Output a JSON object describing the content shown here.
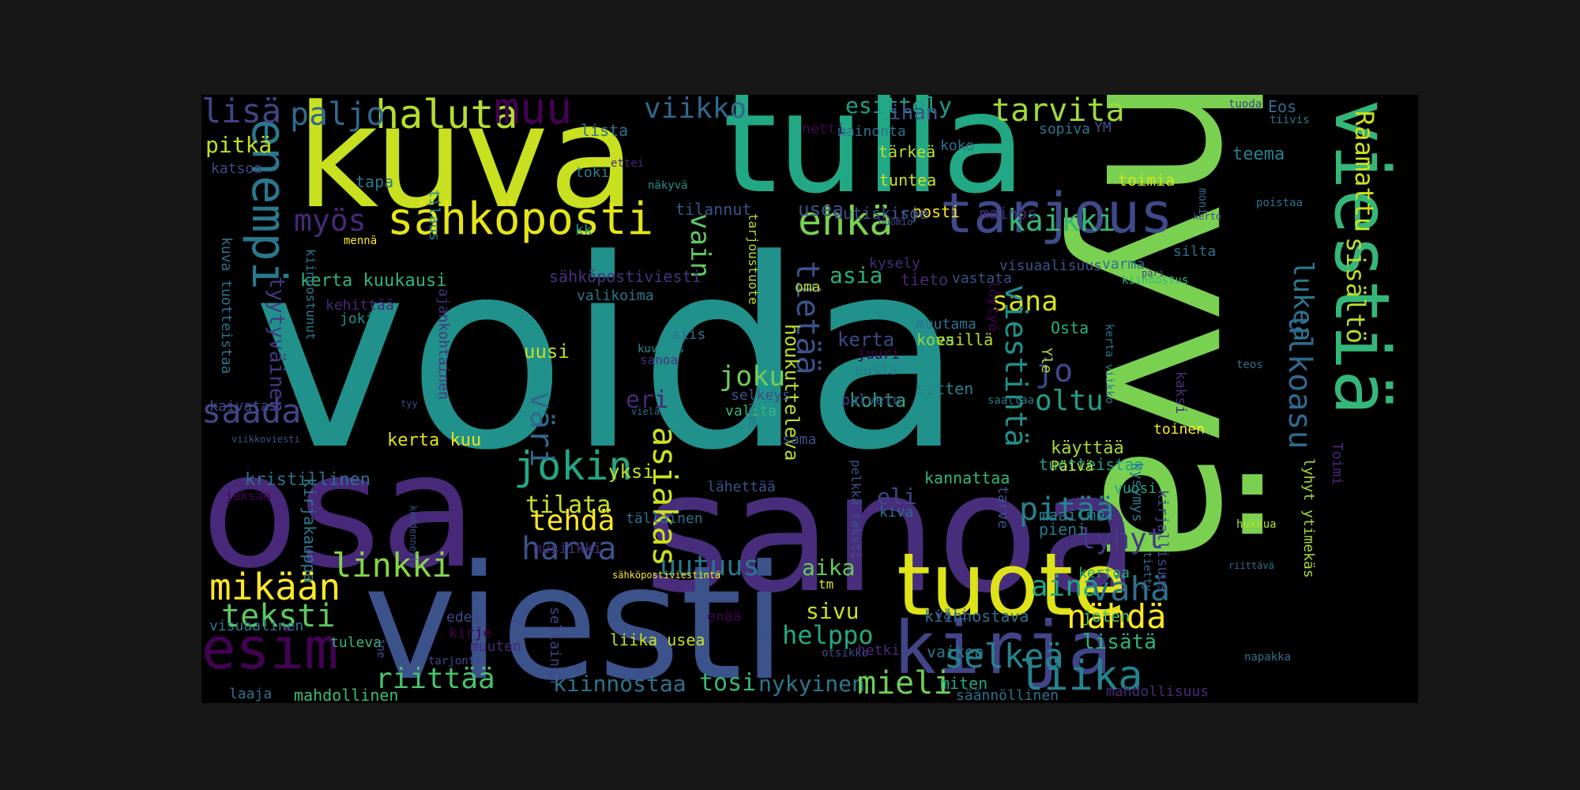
{
  "words": [
    {
      "id": "voida",
      "text": "voida",
      "color": "#21918c"
    },
    {
      "id": "hyva",
      "text": "hyvä",
      "color": "#7ad151"
    },
    {
      "id": "sanoa",
      "text": "sanoa",
      "color": "#472d7b"
    },
    {
      "id": "osa",
      "text": "osa",
      "color": "#482878"
    },
    {
      "id": "viesti",
      "text": "viesti",
      "color": "#3b528b"
    },
    {
      "id": "kuva",
      "text": "kuva",
      "color": "#c8e020"
    },
    {
      "id": "tulla",
      "text": "tulla",
      "color": "#22a884"
    },
    {
      "id": "tuote",
      "text": "tuote",
      "color": "#dde318"
    },
    {
      "id": "viestia",
      "text": "viestiä",
      "color": "#35b779"
    },
    {
      "id": "kirja",
      "text": "kirja",
      "color": "#414487"
    },
    {
      "id": "tarjous",
      "text": "tarjous",
      "color": "#3e4a89"
    },
    {
      "id": "sahkoposti",
      "text": "sähköposti",
      "color": "#e5e419"
    },
    {
      "id": "enempi",
      "text": "enempi",
      "color": "#2a788e"
    },
    {
      "id": "esim",
      "text": "esim",
      "color": "#440154"
    },
    {
      "id": "haluta",
      "text": "haluta",
      "color": "#b5de2b"
    },
    {
      "id": "muu",
      "text": "muu",
      "color": "#440154"
    },
    {
      "id": "viikko",
      "text": "viikko",
      "color": "#31688e"
    },
    {
      "id": "tarvita",
      "text": "tarvita",
      "color": "#a0da39"
    },
    {
      "id": "esittely",
      "text": "esittely",
      "color": "#1f9e89"
    },
    {
      "id": "lisa",
      "text": "lisä",
      "color": "#414487"
    },
    {
      "id": "paljo",
      "text": "paljo",
      "color": "#31688e"
    },
    {
      "id": "pitka",
      "text": "pitkä",
      "color": "#c2df23"
    },
    {
      "id": "ehka",
      "text": "ehkä",
      "color": "#7ad151"
    },
    {
      "id": "kaikki",
      "text": "kaikki",
      "color": "#35b779"
    },
    {
      "id": "myos",
      "text": "myös",
      "color": "#482878"
    },
    {
      "id": "saada",
      "text": "saada",
      "color": "#414487"
    },
    {
      "id": "joku",
      "text": "joku",
      "color": "#6ece58"
    },
    {
      "id": "jokin",
      "text": "jokin",
      "color": "#22a884"
    },
    {
      "id": "tehda",
      "text": "tehdä",
      "color": "#fde725"
    },
    {
      "id": "harva",
      "text": "harva",
      "color": "#3b528b"
    },
    {
      "id": "uutuus",
      "text": "uutuus",
      "color": "#2a788e"
    },
    {
      "id": "mikaan",
      "text": "mikään",
      "color": "#fde725"
    },
    {
      "id": "linkki",
      "text": "linkki",
      "color": "#86d549"
    },
    {
      "id": "teksti",
      "text": "teksti",
      "color": "#5ec962"
    },
    {
      "id": "sana",
      "text": "sana",
      "color": "#d8e219"
    },
    {
      "id": "oltu",
      "text": "oltu",
      "color": "#1f9e89"
    },
    {
      "id": "jo",
      "text": "jo",
      "color": "#3e4989"
    },
    {
      "id": "pitaa",
      "text": "pitää",
      "color": "#26828e"
    },
    {
      "id": "lyhyt",
      "text": "lyhyt",
      "color": "#443983"
    },
    {
      "id": "aina",
      "text": "aina",
      "color": "#21a685"
    },
    {
      "id": "vaha",
      "text": "vähä",
      "color": "#2c728e"
    },
    {
      "id": "nahda",
      "text": "nähdä",
      "color": "#fde725"
    },
    {
      "id": "selkea",
      "text": "selkeä",
      "color": "#26828e"
    },
    {
      "id": "liika",
      "text": "liika",
      "color": "#25838e"
    },
    {
      "id": "lisata",
      "text": "lisätä",
      "color": "#2db27d"
    },
    {
      "id": "riittaa",
      "text": "riittää",
      "color": "#4ac16d"
    },
    {
      "id": "kiinnostaa",
      "text": "kiinnostaa",
      "color": "#2c728e"
    },
    {
      "id": "tosi",
      "text": "tosi",
      "color": "#35b779"
    },
    {
      "id": "nykyinen",
      "text": "nykyinen",
      "color": "#2a788e"
    },
    {
      "id": "mieli",
      "text": "mieli",
      "color": "#6ece58"
    },
    {
      "id": "helppo",
      "text": "helppo",
      "color": "#22a884"
    },
    {
      "id": "sivu",
      "text": "sivu",
      "color": "#c8e020"
    },
    {
      "id": "aika",
      "text": "aika",
      "color": "#65cb5e"
    },
    {
      "id": "tilata",
      "text": "tilata",
      "color": "#c8e020"
    },
    {
      "id": "yksi",
      "text": "yksi",
      "color": "#bddf26"
    },
    {
      "id": "eri",
      "text": "eri",
      "color": "#482878"
    },
    {
      "id": "asia",
      "text": "asia",
      "color": "#27ad81"
    },
    {
      "id": "kohta",
      "text": "kohta",
      "color": "#25ab82"
    },
    {
      "id": "eli",
      "text": "eli",
      "color": "#414487"
    },
    {
      "id": "kerta",
      "text": "kerta",
      "color": "#3e4a89"
    },
    {
      "id": "uusi",
      "text": "uusi",
      "color": "#c2df23"
    },
    {
      "id": "kerta-kuukausi",
      "text": "kerta kuukausi",
      "color": "#31b57b"
    },
    {
      "id": "kerta-kuu",
      "text": "kerta kuu",
      "color": "#e5e419"
    },
    {
      "id": "kristillinen",
      "text": "kristillinen",
      "color": "#2c728e"
    },
    {
      "id": "usea",
      "text": "usea",
      "color": "#3b528b"
    },
    {
      "id": "tapa",
      "text": "tapa",
      "color": "#2a788e"
    },
    {
      "id": "tilaus",
      "text": "tilaus",
      "color": "#228c8d"
    },
    {
      "id": "lista",
      "text": "lista",
      "color": "#2c728e"
    },
    {
      "id": "toki",
      "text": "toki",
      "color": "#287c8e"
    },
    {
      "id": "kk",
      "text": "kk",
      "color": "#1fa088"
    },
    {
      "id": "ihan",
      "text": "ihan",
      "color": "#3b528b"
    },
    {
      "id": "mainonta",
      "text": "mainonta",
      "color": "#2c728e"
    },
    {
      "id": "tarkea",
      "text": "tärkeä",
      "color": "#bddf26"
    },
    {
      "id": "tuntea",
      "text": "tuntea",
      "color": "#cae11f"
    },
    {
      "id": "koko",
      "text": "koko",
      "color": "#2c728e"
    },
    {
      "id": "netti",
      "text": "netti",
      "color": "#440154"
    },
    {
      "id": "sopiva",
      "text": "sopiva",
      "color": "#2a788e"
    },
    {
      "id": "ym",
      "text": "YM",
      "color": "#3b528b"
    },
    {
      "id": "tuoda",
      "text": "tuoda",
      "color": "#3e4989"
    },
    {
      "id": "eos",
      "text": "Eos",
      "color": "#2e6f8e"
    },
    {
      "id": "tiiviis",
      "text": "tiivis",
      "color": "#2a788e"
    },
    {
      "id": "teema",
      "text": "teema",
      "color": "#26828e"
    },
    {
      "id": "toimia",
      "text": "toimia",
      "color": "#d2e21b"
    },
    {
      "id": "raamattu",
      "text": "Raamattu",
      "color": "#cde11d"
    },
    {
      "id": "sisalto",
      "text": "sisältö",
      "color": "#b8de29"
    },
    {
      "id": "lukea",
      "text": "lukea",
      "color": "#2a788e"
    },
    {
      "id": "ulkoasu",
      "text": "ulkoasu",
      "color": "#31688e"
    },
    {
      "id": "viestinta",
      "text": "viestintä",
      "color": "#21918c"
    },
    {
      "id": "tietaa",
      "text": "tietää",
      "color": "#3b528b"
    },
    {
      "id": "vain",
      "text": "vain",
      "color": "#5ec962"
    },
    {
      "id": "houkutteleva",
      "text": "houkutteleva",
      "color": "#bddf26"
    },
    {
      "id": "asiakas",
      "text": "asiakas",
      "color": "#cde11d"
    },
    {
      "id": "vari",
      "text": "väri",
      "color": "#31688e"
    },
    {
      "id": "tuotteistaa",
      "text": "tuotteistaa",
      "color": "#1fa088"
    },
    {
      "id": "kayttaa",
      "text": "käyttää",
      "color": "#a8db34"
    },
    {
      "id": "toinen",
      "text": "toinen",
      "color": "#fde725"
    },
    {
      "id": "paiva",
      "text": "Päivä",
      "color": "#bddf26"
    },
    {
      "id": "kiinnostava",
      "text": "kiinnostava",
      "color": "#2c728e"
    },
    {
      "id": "joten",
      "text": "joten",
      "color": "#4ac16d"
    },
    {
      "id": "osta",
      "text": "Osta",
      "color": "#2ab07f"
    },
    {
      "id": "yle",
      "text": "Yle",
      "color": "#bddf26"
    },
    {
      "id": "esilla",
      "text": "esillä",
      "color": "#bddf26"
    },
    {
      "id": "kova",
      "text": "kova",
      "color": "#8bd646"
    },
    {
      "id": "muutama",
      "text": "muutama",
      "color": "#2c728e"
    },
    {
      "id": "sitten",
      "text": "sitten",
      "color": "#25838e"
    },
    {
      "id": "kannattaa",
      "text": "kannattaa",
      "color": "#35b779"
    },
    {
      "id": "vuosi",
      "text": "vuosi",
      "color": "#22a884"
    },
    {
      "id": "maailma",
      "text": "maailma",
      "color": "#2a788e"
    },
    {
      "id": "pieni",
      "text": "pieni",
      "color": "#2a788e"
    },
    {
      "id": "kertoa",
      "text": "kertoa",
      "color": "#25ab82"
    },
    {
      "id": "silta",
      "text": "silta",
      "color": "#2c728e"
    },
    {
      "id": "varma",
      "text": "varma",
      "color": "#2c728e"
    },
    {
      "id": "kiinnostus",
      "text": "kiinnostus",
      "color": "#35b779"
    },
    {
      "id": "vastata",
      "text": "vastata",
      "color": "#3b528b"
    },
    {
      "id": "tieto",
      "text": "tieto",
      "color": "#482878"
    },
    {
      "id": "kysely",
      "text": "kysely",
      "color": "#482878"
    },
    {
      "id": "visuaalisuus",
      "text": "visuaalisuus",
      "color": "#3b528b"
    },
    {
      "id": "mainos",
      "text": "mainos",
      "color": "#482878"
    },
    {
      "id": "posti",
      "text": "posti",
      "color": "#fde725"
    },
    {
      "id": "iso",
      "text": "iso",
      "color": "#3b528b"
    },
    {
      "id": "uutiskirje",
      "text": "uutiskirje",
      "color": "#3b528b"
    },
    {
      "id": "tilannut",
      "text": "tilannut",
      "color": "#3b528b"
    },
    {
      "id": "tyytyvainen",
      "text": "tyytyväinen",
      "color": "#443983"
    },
    {
      "id": "kiinnostunut",
      "text": "kiinnostunut",
      "color": "#2a788e"
    },
    {
      "id": "kehittaa",
      "text": "kehittää",
      "color": "#482878"
    },
    {
      "id": "joki",
      "text": "joki",
      "color": "#21918c"
    },
    {
      "id": "ajankohtainen",
      "text": "ajankohtainen",
      "color": "#46327e"
    },
    {
      "id": "kuva-tuotteistaa",
      "text": "kuva tuotteistaa",
      "color": "#2c728e"
    },
    {
      "id": "kaivata",
      "text": "kaivata",
      "color": "#3e4a89"
    },
    {
      "id": "katsoa",
      "text": "katsoa",
      "color": "#3e4989"
    },
    {
      "id": "sahkopostiviesti",
      "text": "sähköpostiviesti",
      "color": "#46327e"
    },
    {
      "id": "valikoima",
      "text": "valikoima",
      "color": "#2a788e"
    },
    {
      "id": "oma",
      "text": "oma",
      "color": "#c2df23"
    },
    {
      "id": "siis",
      "text": "siis",
      "color": "#2c728e"
    },
    {
      "id": "sanoa-small",
      "text": "sanoa",
      "color": "#46327e"
    },
    {
      "id": "valita",
      "text": "valita",
      "color": "#35b779"
    },
    {
      "id": "selkeys",
      "text": "selkeys",
      "color": "#3b528b"
    },
    {
      "id": "sama",
      "text": "sama",
      "color": "#3b528b"
    },
    {
      "id": "palvelu",
      "text": "palvelu",
      "color": "#3e4a89"
    },
    {
      "id": "juuri",
      "text": "juuri",
      "color": "#440154"
    },
    {
      "id": "uusia",
      "text": "uusia",
      "color": "#2a788e"
    },
    {
      "id": "lahettaa",
      "text": "lähettää",
      "color": "#3b528b"
    },
    {
      "id": "kiva",
      "text": "kiva",
      "color": "#2c728e"
    },
    {
      "id": "tallainen",
      "text": "tällainen",
      "color": "#2c728e"
    },
    {
      "id": "pelkka-teksti",
      "text": "pelkkä teksti",
      "color": "#3b528b"
    },
    {
      "id": "musiikki",
      "text": "musiikki",
      "color": "#482878"
    },
    {
      "id": "sahkopostiviestinta",
      "text": "sähköpostiviestintä",
      "color": "#fde725"
    },
    {
      "id": "tm",
      "text": "tm",
      "color": "#dde318"
    },
    {
      "id": "enaa",
      "text": "enää",
      "color": "#440154"
    },
    {
      "id": "vali",
      "text": "väli",
      "color": "#3b528b"
    },
    {
      "id": "vaikea",
      "text": "vaikea",
      "color": "#2a788e"
    },
    {
      "id": "ihminen",
      "text": "ihminen",
      "color": "#3b528b"
    },
    {
      "id": "otsikko",
      "text": "otsikko",
      "color": "#3e4989"
    },
    {
      "id": "hetki",
      "text": "hetki",
      "color": "#482878"
    },
    {
      "id": "miten",
      "text": "miten",
      "color": "#21a685"
    },
    {
      "id": "saannollinen",
      "text": "säännöllinen",
      "color": "#2c728e"
    },
    {
      "id": "mahdollisuus",
      "text": "mahdollisuus",
      "color": "#482878"
    },
    {
      "id": "mahdollinen",
      "text": "mahdollinen",
      "color": "#3fbc73"
    },
    {
      "id": "laaja",
      "text": "laaja",
      "color": "#2c728e"
    },
    {
      "id": "visuaalinen",
      "text": "visuaalinen",
      "color": "#2a788e"
    },
    {
      "id": "tuleva",
      "text": "tuleva",
      "color": "#35b779"
    },
    {
      "id": "edes",
      "text": "edes",
      "color": "#3e4989"
    },
    {
      "id": "kirje",
      "text": "kirje",
      "color": "#440154"
    },
    {
      "id": "muuten",
      "text": "muuten",
      "color": "#482878"
    },
    {
      "id": "tarjonta",
      "text": "tarjonta",
      "color": "#3e4989"
    },
    {
      "id": "liika-usea",
      "text": "liika usea",
      "color": "#c8e020"
    },
    {
      "id": "sellainen",
      "text": "sellainen",
      "color": "#414487"
    },
    {
      "id": "kirjakauppa",
      "text": "kirjakauppa",
      "color": "#2a788e"
    },
    {
      "id": "jaksaa",
      "text": "jaksaa",
      "color": "#440154"
    },
    {
      "id": "kohdennettu",
      "text": "kohdennettu",
      "color": "#3b528b"
    },
    {
      "id": "kirjallisuus",
      "text": "kirjallisuus",
      "color": "#414487"
    },
    {
      "id": "tarve",
      "text": "tarve",
      "color": "#3b528b"
    },
    {
      "id": "lyhyt-ytimekas",
      "text": "lyhyt ytimekäs",
      "color": "#a8db34"
    },
    {
      "id": "kysymys",
      "text": "kysymys",
      "color": "#2a788e"
    },
    {
      "id": "toimi",
      "text": "Toimi",
      "color": "#482878"
    },
    {
      "id": "hukkua",
      "text": "hukkua",
      "color": "#b5de2b"
    },
    {
      "id": "kaksi",
      "text": "kaksi",
      "color": "#472d7b"
    },
    {
      "id": "teos",
      "text": "teos",
      "color": "#2c728e"
    },
    {
      "id": "kerta-viikko",
      "text": "kerta viikko",
      "color": "#2a788e"
    },
    {
      "id": "loytya",
      "text": "löytyä",
      "color": "#440154"
    },
    {
      "id": "tarjoustuote",
      "text": "tarjoustuote",
      "color": "#b5de2b"
    },
    {
      "id": "nimi",
      "text": "nimi",
      "color": "#2c728e"
    },
    {
      "id": "kuvitus",
      "text": "kuvitus",
      "color": "#21918c"
    },
    {
      "id": "viela",
      "text": "vielä",
      "color": "#2c728e"
    },
    {
      "id": "tyy",
      "text": "tyy",
      "color": "#414487"
    },
    {
      "id": "kurtti",
      "text": "kurtti",
      "color": "#2a788e"
    },
    {
      "id": "viikkoviesti",
      "text": "viikkoviesti",
      "color": "#3b528b"
    },
    {
      "id": "ettei",
      "text": "ettei",
      "color": "#482878"
    },
    {
      "id": "nakyva",
      "text": "näkyvä",
      "color": "#21918c"
    },
    {
      "id": "menna",
      "text": "mennä",
      "color": "#fde725"
    },
    {
      "id": "huomio",
      "text": "huomio",
      "color": "#3e4989"
    },
    {
      "id": "kerto",
      "text": "kerto",
      "color": "#414487"
    },
    {
      "id": "moni",
      "text": "moni",
      "color": "#31688e"
    },
    {
      "id": "poistaa",
      "text": "poistaa",
      "color": "#2c728e"
    },
    {
      "id": "pari",
      "text": "pari",
      "color": "#3e4989"
    },
    {
      "id": "saattaa",
      "text": "saattaa",
      "color": "#2a788e"
    },
    {
      "id": "riittava",
      "text": "riittävä",
      "color": "#2c728e"
    },
    {
      "id": "napakka",
      "text": "napakka",
      "color": "#2c728e"
    },
    {
      "id": "tietty",
      "text": "tietty",
      "color": "#2c728e"
    },
    {
      "id": "jne",
      "text": "jne",
      "color": "#3b528b"
    }
  ]
}
